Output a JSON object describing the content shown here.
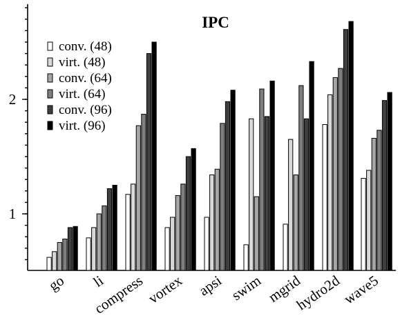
{
  "chart_data": {
    "type": "bar",
    "title": "IPC",
    "xlabel": "",
    "ylabel": "",
    "categories": [
      "go",
      "li",
      "compress",
      "vortex",
      "apsi",
      "swim",
      "mgrid",
      "hydro2d",
      "wave5"
    ],
    "yticks": [
      1,
      2
    ],
    "ylim": [
      0.5,
      2.8
    ],
    "legend_position": "top-left",
    "series": [
      {
        "name": "conv. (48)",
        "color": "#ffffff",
        "values": [
          0.62,
          0.79,
          1.17,
          0.88,
          0.97,
          0.73,
          0.91,
          1.78,
          1.31
        ]
      },
      {
        "name": "virt. (48)",
        "color": "#d9d9d9",
        "values": [
          0.67,
          0.88,
          1.26,
          0.97,
          1.34,
          1.83,
          1.65,
          2.04,
          1.38
        ]
      },
      {
        "name": "conv. (64)",
        "color": "#a6a6a6",
        "values": [
          0.75,
          1.0,
          1.77,
          1.16,
          1.39,
          1.15,
          1.34,
          2.19,
          1.66
        ]
      },
      {
        "name": "virt. (64)",
        "color": "#7f7f7f",
        "values": [
          0.78,
          1.07,
          1.87,
          1.26,
          1.79,
          2.09,
          2.12,
          2.27,
          1.73
        ]
      },
      {
        "name": "conv. (96)",
        "color": "#3f3f3f",
        "values": [
          0.88,
          1.22,
          2.4,
          1.5,
          1.98,
          1.85,
          1.83,
          2.61,
          1.99
        ]
      },
      {
        "name": "virt. (96)",
        "color": "#000000",
        "values": [
          0.89,
          1.25,
          2.5,
          1.57,
          2.08,
          2.16,
          2.33,
          2.68,
          2.06
        ]
      }
    ]
  }
}
